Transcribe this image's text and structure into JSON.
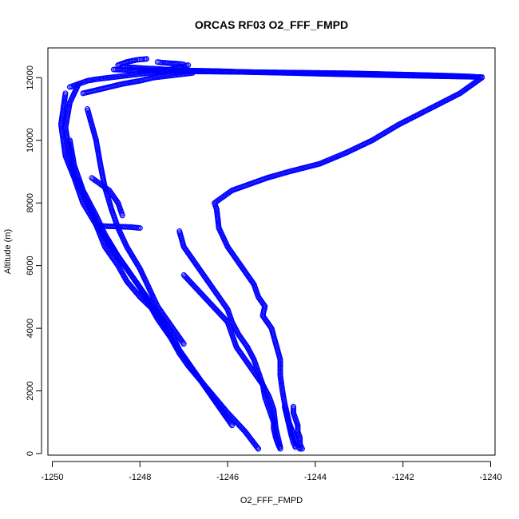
{
  "chart_data": {
    "type": "scatter",
    "title": "ORCAS RF03 O2_FFF_FMPD",
    "xlabel": "O2_FFF_FMPD",
    "ylabel": "Altitude (m)",
    "xlim": [
      -1250.1,
      -1239.9
    ],
    "ylim": [
      -50,
      12950
    ],
    "x_ticks": [
      -1250,
      -1248,
      -1246,
      -1244,
      -1242,
      -1240
    ],
    "y_ticks": [
      0,
      2000,
      4000,
      6000,
      8000,
      10000,
      12000
    ],
    "grid": false,
    "marker": "open-circle",
    "color": "#0000ff",
    "profiles": [
      {
        "x": [
          -1248.4,
          -1248.2,
          -1247.9,
          -1247.6,
          -1247.4,
          -1247.1,
          -1246.9,
          -1246.6,
          -1246.2,
          -1245.8,
          -1245.3,
          -1244.6,
          -1243.8,
          -1242.8,
          -1241.7,
          -1240.9,
          -1240.2
        ],
        "y": [
          12350,
          12330,
          12300,
          12280,
          12260,
          12240,
          12230,
          12220,
          12210,
          12190,
          12170,
          12150,
          12120,
          12090,
          12060,
          12040,
          12020
        ]
      },
      {
        "x": [
          -1240.2,
          -1240.7,
          -1241.4,
          -1242.1,
          -1242.7,
          -1243.3,
          -1243.9,
          -1244.6,
          -1245.1,
          -1245.5,
          -1245.9,
          -1246.1,
          -1246.3,
          -1246.25,
          -1246.2,
          -1246.0,
          -1245.8,
          -1245.6,
          -1245.4,
          -1245.3,
          -1245.15,
          -1245.2,
          -1245.0,
          -1244.9,
          -1244.8,
          -1244.8,
          -1244.75,
          -1244.7,
          -1244.65,
          -1244.6,
          -1244.55,
          -1244.5,
          -1244.45,
          -1244.4,
          -1244.35
        ],
        "y": [
          12000,
          11500,
          11000,
          10500,
          10000,
          9600,
          9250,
          9000,
          8800,
          8600,
          8400,
          8200,
          8000,
          7800,
          7200,
          6600,
          6200,
          5800,
          5400,
          5000,
          4700,
          4400,
          4000,
          3500,
          3000,
          2500,
          2000,
          1600,
          1300,
          1000,
          800,
          600,
          400,
          250,
          150
        ]
      },
      {
        "x": [
          -1247.1,
          -1247.0,
          -1246.8,
          -1246.6,
          -1246.4,
          -1246.2,
          -1246.0,
          -1245.9,
          -1245.75,
          -1245.55,
          -1245.4,
          -1245.3,
          -1245.2,
          -1245.15,
          -1245.05,
          -1244.95,
          -1244.95,
          -1244.9,
          -1244.85,
          -1244.8
        ],
        "y": [
          7100,
          6600,
          6200,
          5800,
          5400,
          5000,
          4600,
          4200,
          3800,
          3400,
          3000,
          2600,
          2200,
          1800,
          1400,
          1000,
          800,
          500,
          300,
          150
        ]
      },
      {
        "x": [
          -1247.0,
          -1246.8,
          -1246.6,
          -1246.4,
          -1246.2,
          -1246.0,
          -1245.9,
          -1245.8,
          -1245.6,
          -1245.4,
          -1245.2,
          -1245.05,
          -1244.95,
          -1244.9,
          -1244.8
        ],
        "y": [
          5700,
          5400,
          5100,
          4800,
          4500,
          4200,
          3800,
          3400,
          3000,
          2600,
          2200,
          1800,
          1400,
          800,
          200
        ]
      },
      {
        "x": [
          -1249.7,
          -1249.8,
          -1249.7,
          -1249.5,
          -1249.3,
          -1249.0,
          -1248.8,
          -1248.5,
          -1248.3,
          -1248.0,
          -1247.7,
          -1247.5,
          -1247.3,
          -1247.1,
          -1246.9,
          -1246.6,
          -1246.3,
          -1246.0,
          -1245.6,
          -1245.3
        ],
        "y": [
          11500,
          10500,
          9500,
          8800,
          8000,
          7300,
          6600,
          6000,
          5500,
          5000,
          4600,
          4200,
          3700,
          3200,
          2800,
          2300,
          1800,
          1300,
          700,
          150
        ]
      },
      {
        "x": [
          -1249.6,
          -1249.5,
          -1249.3,
          -1249.0,
          -1248.8,
          -1248.5,
          -1248.2,
          -1247.9,
          -1247.6,
          -1247.3,
          -1247.1,
          -1246.8,
          -1246.5,
          -1246.2,
          -1245.9
        ],
        "y": [
          10000,
          9200,
          8400,
          7600,
          7000,
          6300,
          5700,
          5100,
          4500,
          3900,
          3300,
          2700,
          2100,
          1500,
          900
        ]
      },
      {
        "x": [
          -1249.4,
          -1249.6,
          -1249.7,
          -1249.6,
          -1249.5,
          -1249.3,
          -1249.1,
          -1248.9,
          -1248.6,
          -1248.3,
          -1248.0,
          -1247.8,
          -1247.6,
          -1247.4,
          -1247.2,
          -1247.0,
          -1246.8,
          -1246.6,
          -1246.4,
          -1246.2,
          -1246.0
        ],
        "y": [
          11800,
          11200,
          10400,
          9600,
          8900,
          8300,
          7700,
          7100,
          6500,
          5900,
          5300,
          4800,
          4300,
          3900,
          3500,
          3100,
          2700,
          2300,
          1900,
          1500,
          1100
        ]
      },
      {
        "x": [
          -1249.2,
          -1249.0,
          -1248.9,
          -1248.8,
          -1248.65,
          -1248.5,
          -1248.3,
          -1248.0,
          -1247.8,
          -1247.6,
          -1247.3,
          -1247.0
        ],
        "y": [
          11000,
          10000,
          9200,
          8500,
          7800,
          7200,
          6600,
          5900,
          5300,
          4700,
          4100,
          3500
        ]
      },
      {
        "x": [
          -1248.6,
          -1248.0,
          -1247.4,
          -1246.8,
          -1246.2,
          -1245.6,
          -1245.0,
          -1244.4,
          -1243.8,
          -1243.2,
          -1242.6,
          -1242.0,
          -1241.4,
          -1240.9,
          -1240.5,
          -1240.3
        ],
        "y": [
          12260,
          12230,
          12210,
          12200,
          12190,
          12180,
          12170,
          12160,
          12150,
          12140,
          12120,
          12100,
          12080,
          12060,
          12040,
          12020
        ]
      },
      {
        "x": [
          -1249.6,
          -1249.4,
          -1249.2,
          -1249.0,
          -1248.7,
          -1248.4,
          -1248.1,
          -1247.8,
          -1247.5,
          -1247.2,
          -1246.9
        ],
        "y": [
          11700,
          11800,
          11900,
          11950,
          12000,
          12050,
          12100,
          12150,
          12200,
          12300,
          12400
        ]
      },
      {
        "x": [
          -1249.3,
          -1249.0,
          -1248.7,
          -1248.4,
          -1248.0,
          -1247.7,
          -1247.4,
          -1247.1,
          -1246.8
        ],
        "y": [
          11500,
          11600,
          11700,
          11800,
          11900,
          12000,
          12050,
          12100,
          12150
        ]
      },
      {
        "x": [
          -1248.5,
          -1248.4,
          -1248.3,
          -1248.2,
          -1248.1,
          -1248.0,
          -1247.9,
          -1247.85
        ],
        "y": [
          12400,
          12450,
          12500,
          12530,
          12560,
          12580,
          12590,
          12600
        ]
      },
      {
        "x": [
          -1247.6,
          -1247.5,
          -1247.3,
          -1247.1,
          -1247.0
        ],
        "y": [
          12500,
          12480,
          12460,
          12440,
          12420
        ]
      },
      {
        "x": [
          -1249.0,
          -1248.9,
          -1248.8,
          -1248.6,
          -1248.4,
          -1248.2,
          -1248.0
        ],
        "y": [
          7300,
          7280,
          7260,
          7250,
          7240,
          7230,
          7200
        ]
      },
      {
        "x": [
          -1249.1,
          -1248.9,
          -1248.7,
          -1248.6,
          -1248.5,
          -1248.4
        ],
        "y": [
          8800,
          8600,
          8400,
          8200,
          8000,
          7600
        ]
      },
      {
        "x": [
          -1244.5,
          -1244.5,
          -1244.45,
          -1244.4,
          -1244.4,
          -1244.35,
          -1244.35,
          -1244.3
        ],
        "y": [
          1500,
          1300,
          1100,
          900,
          700,
          500,
          300,
          150
        ]
      },
      {
        "x": [
          -1244.7,
          -1244.65,
          -1244.6,
          -1244.55,
          -1244.5,
          -1244.45
        ],
        "y": [
          1500,
          1200,
          900,
          600,
          350,
          200
        ]
      }
    ]
  }
}
